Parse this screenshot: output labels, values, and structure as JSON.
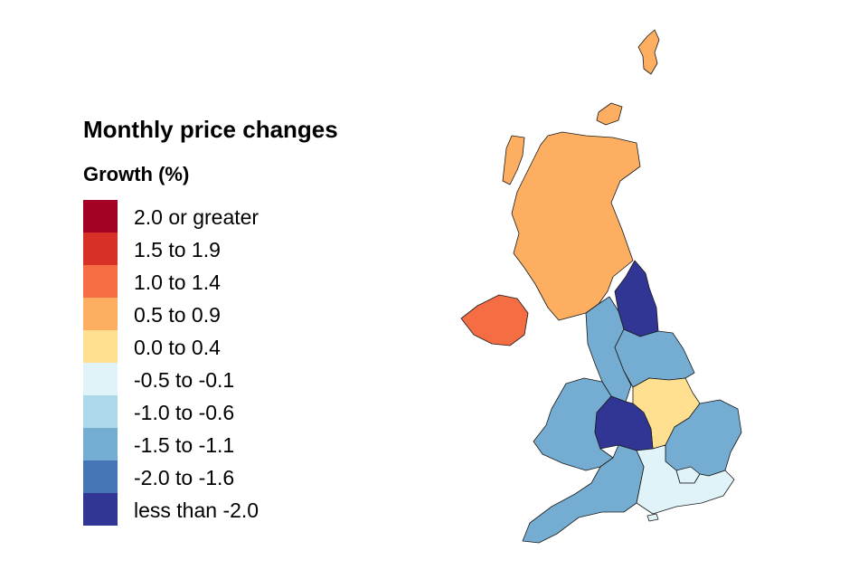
{
  "legend": {
    "title": "Monthly price changes",
    "subtitle": "Growth (%)",
    "items": [
      {
        "label": "2.0 or greater",
        "color": "#a50026"
      },
      {
        "label": "1.5 to 1.9",
        "color": "#d73027"
      },
      {
        "label": "1.0 to 1.4",
        "color": "#f46d43"
      },
      {
        "label": "0.5 to 0.9",
        "color": "#fdae61"
      },
      {
        "label": "0.0 to 0.4",
        "color": "#fee090"
      },
      {
        "label": "-0.5 to -0.1",
        "color": "#e0f3f8"
      },
      {
        "label": "-1.0 to -0.6",
        "color": "#abd9e9"
      },
      {
        "label": "-1.5 to -1.1",
        "color": "#74add1"
      },
      {
        "label": "-2.0 to -1.6",
        "color": "#4575b4"
      },
      {
        "label": "less than -2.0",
        "color": "#313695"
      }
    ]
  },
  "map": {
    "regions": [
      {
        "name": "Scotland",
        "band": "0.5 to 0.9"
      },
      {
        "name": "Northern Ireland",
        "band": "1.0 to 1.4"
      },
      {
        "name": "North East",
        "band": "less than -2.0"
      },
      {
        "name": "North West",
        "band": "-1.5 to -1.1"
      },
      {
        "name": "Yorkshire and The Humber",
        "band": "-1.5 to -1.1"
      },
      {
        "name": "East Midlands",
        "band": "0.0 to 0.4"
      },
      {
        "name": "West Midlands",
        "band": "less than -2.0"
      },
      {
        "name": "Wales",
        "band": "-1.5 to -1.1"
      },
      {
        "name": "East of England",
        "band": "-1.5 to -1.1"
      },
      {
        "name": "London",
        "band": "-0.5 to -0.1"
      },
      {
        "name": "South East",
        "band": "-0.5 to -0.1"
      },
      {
        "name": "South West",
        "band": "-1.5 to -1.1"
      }
    ]
  }
}
